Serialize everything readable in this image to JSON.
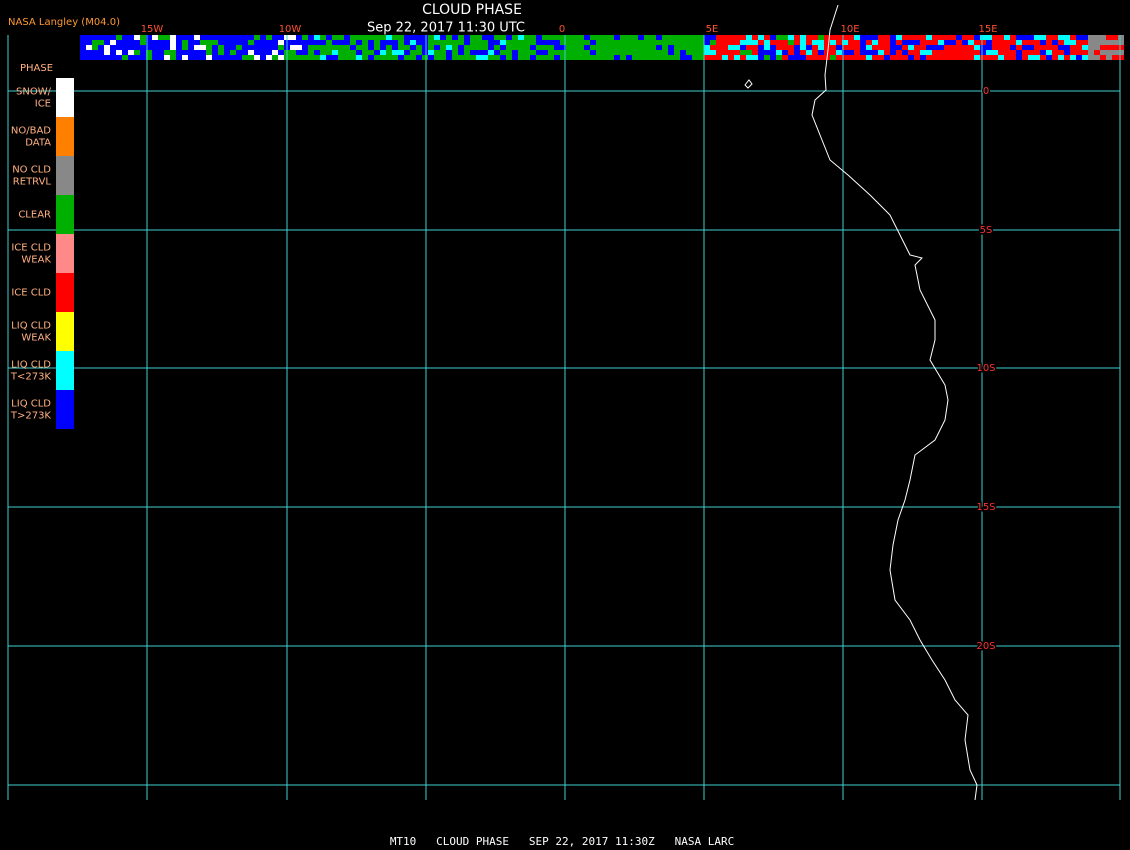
{
  "header": {
    "source": "NASA Langley (M04.0)",
    "title": "CLOUD PHASE",
    "timestamp": "Sep 22, 2017 11:30 UTC"
  },
  "legend": {
    "title": "PHASE",
    "items": [
      {
        "label": [
          "SNOW/",
          "ICE"
        ],
        "color": "#ffffff"
      },
      {
        "label": [
          "NO/BAD",
          "DATA"
        ],
        "color": "#ff8000"
      },
      {
        "label": [
          "NO CLD",
          "RETRVL"
        ],
        "color": "#888888"
      },
      {
        "label": [
          "CLEAR"
        ],
        "color": "#00b000"
      },
      {
        "label": [
          "ICE CLD",
          "WEAK"
        ],
        "color": "#ff8888"
      },
      {
        "label": [
          "ICE CLD"
        ],
        "color": "#ff0000"
      },
      {
        "label": [
          "LIQ CLD",
          "WEAK"
        ],
        "color": "#ffff00"
      },
      {
        "label": [
          "LIQ CLD",
          "T<273K"
        ],
        "color": "#00ffff"
      },
      {
        "label": [
          "LIQ CLD",
          "T>273K"
        ],
        "color": "#0000ff"
      }
    ]
  },
  "grid": {
    "longitudes": [
      "15W",
      "10W",
      "0",
      "5E",
      "10E",
      "15E"
    ],
    "latitudes": [
      "0",
      "5S",
      "10S",
      "15S",
      "20S"
    ]
  },
  "footer": "MT10   CLOUD PHASE   SEP 22, 2017 11:30Z   NASA LARC"
}
